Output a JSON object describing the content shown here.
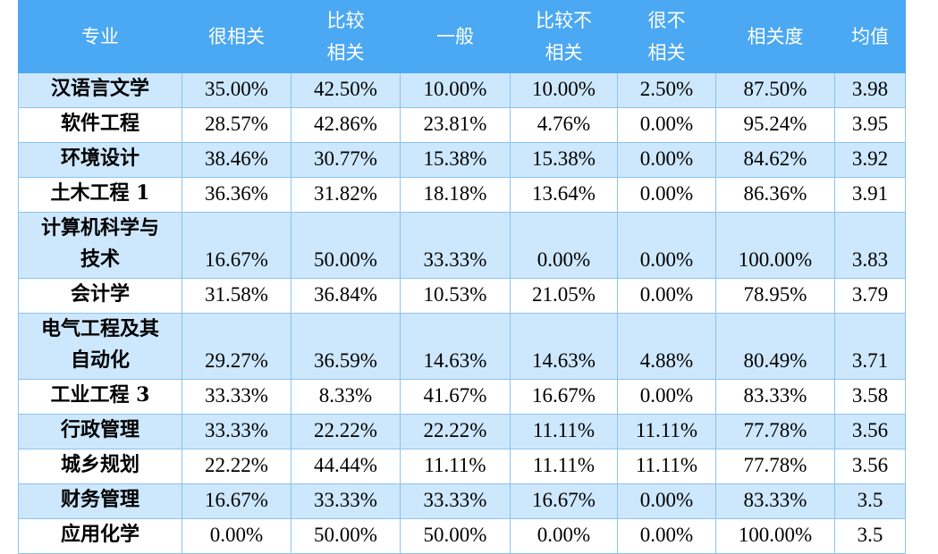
{
  "table": {
    "header": [
      "专业",
      "很相关",
      "比较\n相关",
      "一般",
      "比较不\n相关",
      "很不\n相关",
      "相关度",
      "均值"
    ],
    "rows": [
      [
        "汉语言文学",
        "35.00%",
        "42.50%",
        "10.00%",
        "10.00%",
        "2.50%",
        "87.50%",
        "3.98"
      ],
      [
        "软件工程",
        "28.57%",
        "42.86%",
        "23.81%",
        "4.76%",
        "0.00%",
        "95.24%",
        "3.95"
      ],
      [
        "环境设计",
        "38.46%",
        "30.77%",
        "15.38%",
        "15.38%",
        "0.00%",
        "84.62%",
        "3.92"
      ],
      [
        "土木工程 1",
        "36.36%",
        "31.82%",
        "18.18%",
        "13.64%",
        "0.00%",
        "86.36%",
        "3.91"
      ],
      [
        "计算机科学与\n技术",
        "16.67%",
        "50.00%",
        "33.33%",
        "0.00%",
        "0.00%",
        "100.00%",
        "3.83"
      ],
      [
        "会计学",
        "31.58%",
        "36.84%",
        "10.53%",
        "21.05%",
        "0.00%",
        "78.95%",
        "3.79"
      ],
      [
        "电气工程及其\n自动化",
        "29.27%",
        "36.59%",
        "14.63%",
        "14.63%",
        "4.88%",
        "80.49%",
        "3.71"
      ],
      [
        "工业工程 3",
        "33.33%",
        "8.33%",
        "41.67%",
        "16.67%",
        "0.00%",
        "83.33%",
        "3.58"
      ],
      [
        "行政管理",
        "33.33%",
        "22.22%",
        "22.22%",
        "11.11%",
        "11.11%",
        "77.78%",
        "3.56"
      ],
      [
        "城乡规划",
        "22.22%",
        "44.44%",
        "11.11%",
        "11.11%",
        "11.11%",
        "77.78%",
        "3.56"
      ],
      [
        "财务管理",
        "16.67%",
        "33.33%",
        "33.33%",
        "16.67%",
        "0.00%",
        "83.33%",
        "3.5"
      ],
      [
        "应用化学",
        "0.00%",
        "50.00%",
        "50.00%",
        "0.00%",
        "0.00%",
        "100.00%",
        "3.5"
      ]
    ]
  }
}
